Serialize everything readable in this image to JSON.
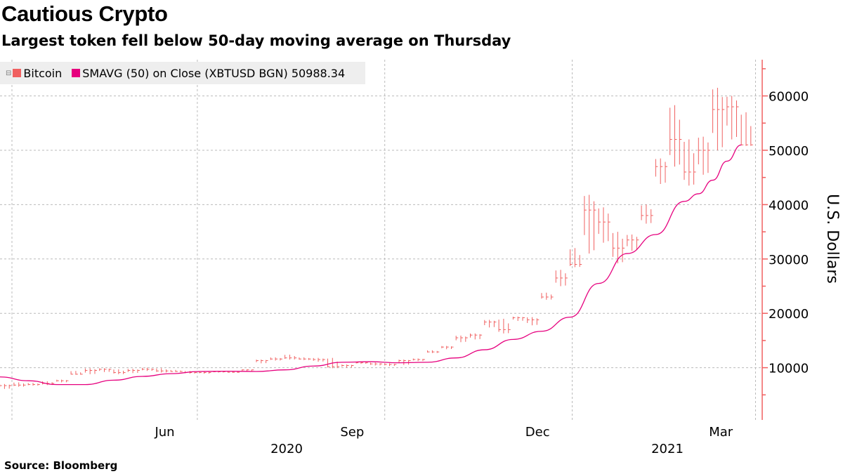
{
  "title": "Cautious Crypto",
  "subtitle": "Largest token fell below 50-day moving average on Thursday",
  "source": "Source:  Bloomberg",
  "legend": {
    "series1": "Bitcoin",
    "series2": "SMAVG (50)  on Close (XBTUSD BGN) 50988.34"
  },
  "colors": {
    "bitcoin": "#f06060",
    "sma": "#e6007e",
    "axis": "#f06060",
    "grid": "#bbbbbb"
  },
  "chart_data": {
    "type": "line",
    "title": "Cautious Crypto",
    "subtitle": "Largest token fell below 50-day moving average on Thursday",
    "ylabel": "U.S. Dollars",
    "ylim": [
      0,
      67000
    ],
    "yticks": [
      10000,
      20000,
      30000,
      40000,
      50000,
      60000
    ],
    "xlim": [
      "2020-03-26",
      "2021-04-03"
    ],
    "xtick_labels": [
      {
        "label": "Jun",
        "date": "2020-06-15"
      },
      {
        "label": "Sep",
        "date": "2020-09-15"
      },
      {
        "label": "Dec",
        "date": "2020-12-15"
      },
      {
        "label": "Mar",
        "date": "2021-03-15"
      }
    ],
    "year_labels": [
      {
        "label": "2020"
      },
      {
        "label": "2021"
      }
    ],
    "grid": true,
    "legend_position": "top-left",
    "series": [
      {
        "name": "Bitcoin",
        "style": "high-low bars",
        "dates": [
          "2020-03-26",
          "2020-04-02",
          "2020-04-09",
          "2020-04-16",
          "2020-04-23",
          "2020-04-30",
          "2020-05-07",
          "2020-05-14",
          "2020-05-21",
          "2020-05-28",
          "2020-06-04",
          "2020-06-11",
          "2020-06-18",
          "2020-06-25",
          "2020-07-02",
          "2020-07-09",
          "2020-07-16",
          "2020-07-23",
          "2020-07-30",
          "2020-08-06",
          "2020-08-13",
          "2020-08-20",
          "2020-08-27",
          "2020-09-03",
          "2020-09-10",
          "2020-09-17",
          "2020-09-24",
          "2020-10-01",
          "2020-10-08",
          "2020-10-15",
          "2020-10-22",
          "2020-10-29",
          "2020-11-05",
          "2020-11-12",
          "2020-11-19",
          "2020-11-26",
          "2020-12-03",
          "2020-12-10",
          "2020-12-17",
          "2020-12-24",
          "2020-12-31",
          "2021-01-07",
          "2021-01-14",
          "2021-01-21",
          "2021-01-28",
          "2021-02-04",
          "2021-02-11",
          "2021-02-18",
          "2021-02-25",
          "2021-03-04",
          "2021-03-11",
          "2021-03-18",
          "2021-03-25"
        ],
        "high": [
          7000,
          7300,
          7200,
          7500,
          7800,
          9400,
          9900,
          9900,
          9700,
          9800,
          10000,
          9900,
          9600,
          9400,
          9300,
          9400,
          9300,
          9700,
          11500,
          11900,
          12400,
          11900,
          11800,
          11800,
          10600,
          11100,
          10950,
          10800,
          11500,
          11700,
          13200,
          14000,
          15900,
          16300,
          18800,
          19000,
          19400,
          19300,
          23800,
          28000,
          32000,
          41800,
          39500,
          35000,
          34500,
          40000,
          48500,
          58300,
          52000,
          52500,
          61500,
          60000,
          57000
        ],
        "low": [
          6100,
          6500,
          6700,
          6800,
          7300,
          8700,
          8800,
          9200,
          8800,
          9000,
          9400,
          9100,
          9200,
          8900,
          8900,
          9100,
          9050,
          9300,
          10800,
          11300,
          11500,
          11400,
          11100,
          9900,
          10000,
          10700,
          10400,
          10300,
          10500,
          11200,
          12700,
          13400,
          14700,
          15200,
          17400,
          16300,
          18600,
          17800,
          22500,
          25000,
          28500,
          31000,
          33000,
          29200,
          31500,
          36500,
          43800,
          47000,
          43500,
          45500,
          50000,
          52000,
          50800
        ],
        "close": [
          6700,
          6800,
          6900,
          7100,
          7600,
          8800,
          9500,
          9700,
          9100,
          9500,
          9700,
          9400,
          9300,
          9100,
          9100,
          9250,
          9150,
          9600,
          11300,
          11600,
          11800,
          11600,
          11500,
          10200,
          10400,
          10900,
          10700,
          10600,
          11300,
          11500,
          12900,
          13800,
          15500,
          16000,
          18400,
          17000,
          19200,
          18800,
          23000,
          26500,
          29000,
          39000,
          36800,
          32000,
          33500,
          38000,
          47000,
          52000,
          46000,
          50000,
          57500,
          58000,
          51000
        ]
      },
      {
        "name": "SMAVG (50)  on Close (XBTUSD BGN)",
        "dates": [
          "2020-03-26",
          "2020-04-09",
          "2020-04-23",
          "2020-05-07",
          "2020-05-21",
          "2020-06-04",
          "2020-06-18",
          "2020-07-02",
          "2020-07-16",
          "2020-07-30",
          "2020-08-13",
          "2020-08-27",
          "2020-09-10",
          "2020-09-24",
          "2020-10-08",
          "2020-10-22",
          "2020-11-05",
          "2020-11-19",
          "2020-12-03",
          "2020-12-17",
          "2020-12-31",
          "2021-01-14",
          "2021-01-28",
          "2021-02-11",
          "2021-02-25",
          "2021-03-04",
          "2021-03-11",
          "2021-03-18",
          "2021-03-25"
        ],
        "values": [
          8300,
          7600,
          6900,
          6900,
          7700,
          8400,
          8900,
          9300,
          9350,
          9300,
          9600,
          10300,
          11000,
          11100,
          10900,
          11000,
          11800,
          13300,
          15200,
          16700,
          19300,
          25500,
          31000,
          34500,
          40600,
          42000,
          44500,
          48000,
          50988.34
        ]
      }
    ]
  }
}
